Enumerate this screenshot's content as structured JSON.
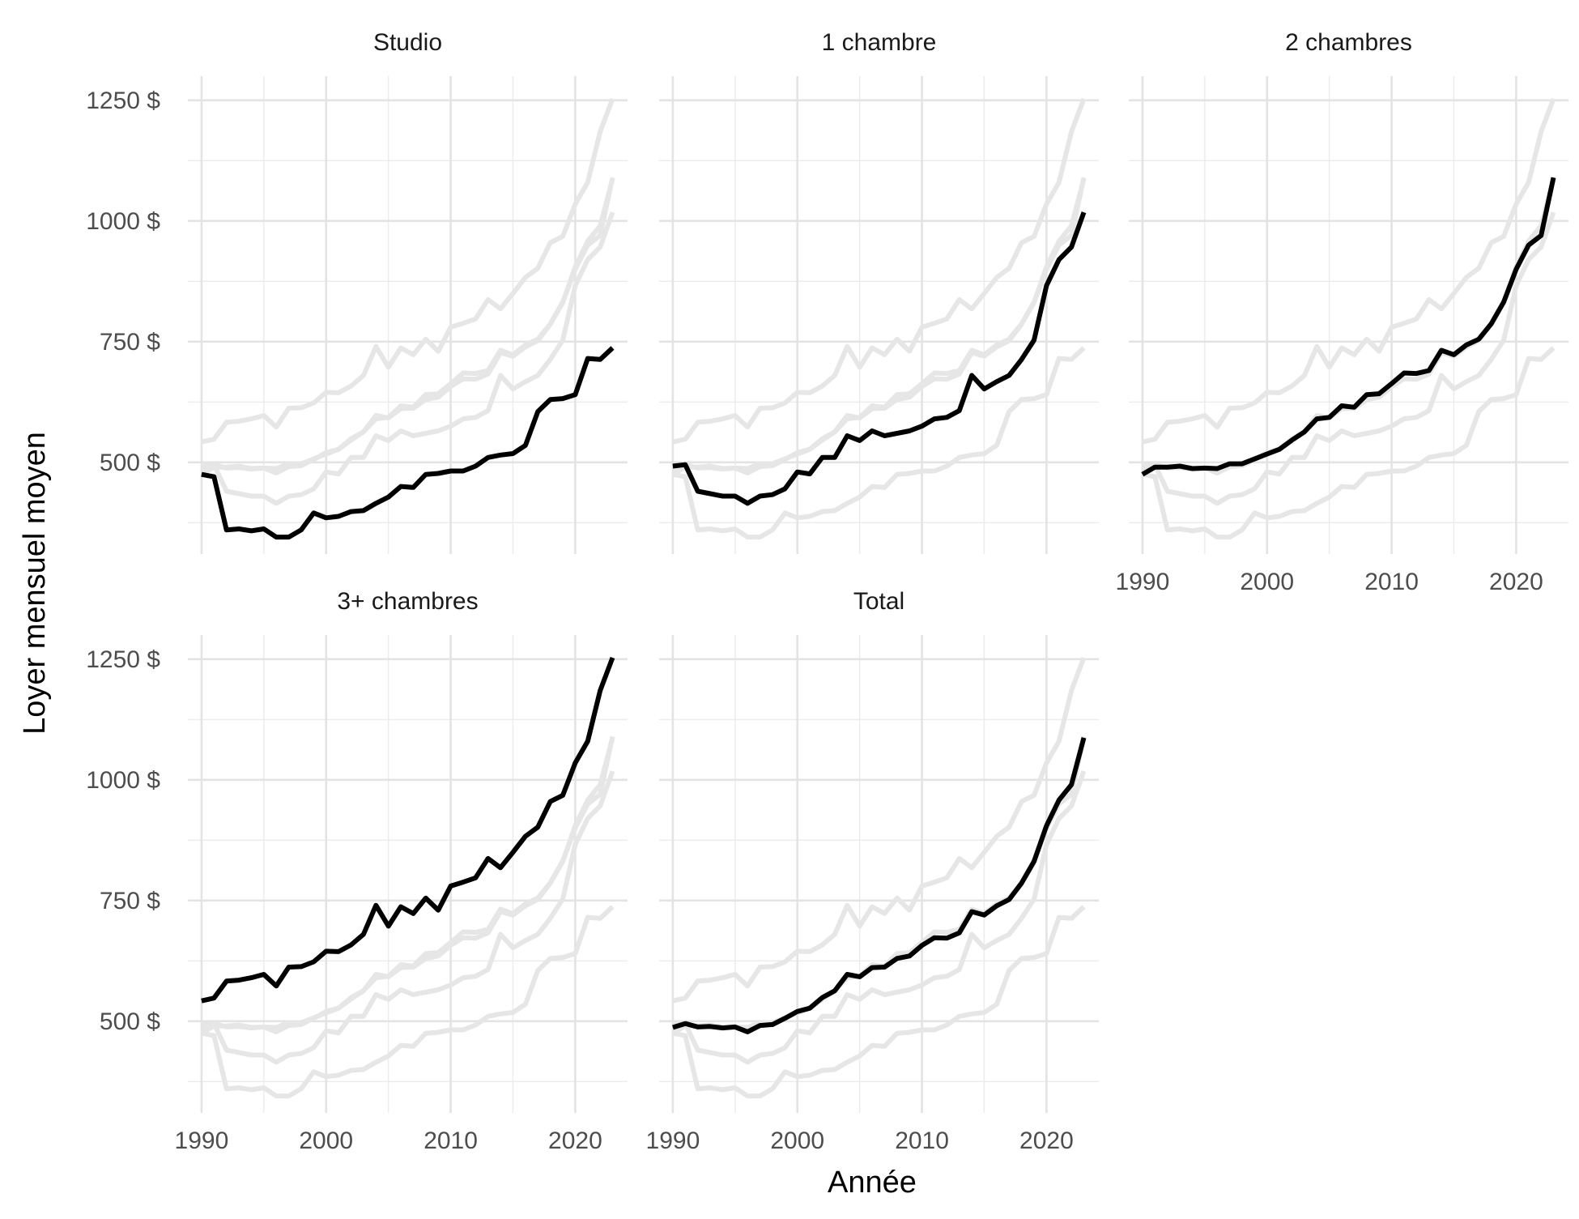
{
  "chart_data": {
    "type": "line",
    "xlabel": "Année",
    "ylabel": "Loyer mensuel moyen",
    "xlim": [
      1988.9,
      2024.2
    ],
    "ylim": [
      310,
      1300
    ],
    "x_ticks": [
      1990,
      2000,
      2010,
      2020
    ],
    "x_tick_labels": [
      "1990",
      "2000",
      "2010",
      "2020"
    ],
    "y_ticks": [
      500,
      750,
      1000,
      1250
    ],
    "y_tick_labels": [
      "500 $",
      "750 $",
      "1000 $",
      "1250 $"
    ],
    "grid": true,
    "legend": "none",
    "highlight_color": "#000000",
    "background_line_color": "#e6e6e6",
    "x": [
      1990,
      1991,
      1992,
      1993,
      1994,
      1995,
      1996,
      1997,
      1998,
      1999,
      2000,
      2001,
      2002,
      2003,
      2004,
      2005,
      2006,
      2007,
      2008,
      2009,
      2010,
      2011,
      2012,
      2013,
      2014,
      2015,
      2016,
      2017,
      2018,
      2019,
      2020,
      2021,
      2022,
      2023
    ],
    "series": [
      {
        "name": "Studio",
        "values": [
          475,
          470,
          360,
          362,
          358,
          362,
          345,
          345,
          360,
          395,
          385,
          388,
          398,
          400,
          415,
          428,
          450,
          448,
          475,
          477,
          482,
          482,
          492,
          510,
          515,
          518,
          535,
          605,
          630,
          632,
          640,
          715,
          713,
          737
        ]
      },
      {
        "name": "1 chambre",
        "values": [
          492,
          495,
          440,
          435,
          430,
          430,
          415,
          430,
          433,
          445,
          480,
          476,
          510,
          510,
          555,
          545,
          565,
          555,
          560,
          565,
          575,
          590,
          593,
          607,
          680,
          652,
          667,
          680,
          713,
          753,
          866,
          920,
          946,
          1018
        ]
      },
      {
        "name": "2 chambres",
        "values": [
          475,
          490,
          490,
          492,
          487,
          488,
          487,
          497,
          497,
          507,
          517,
          527,
          546,
          563,
          590,
          593,
          617,
          614,
          640,
          642,
          663,
          685,
          684,
          690,
          732,
          723,
          743,
          755,
          787,
          832,
          900,
          950,
          970,
          1090
        ]
      },
      {
        "name": "3+ chambres",
        "values": [
          542,
          548,
          583,
          585,
          590,
          597,
          573,
          612,
          613,
          623,
          645,
          644,
          658,
          680,
          740,
          697,
          737,
          723,
          755,
          730,
          780,
          788,
          797,
          837,
          818,
          850,
          883,
          902,
          955,
          968,
          1035,
          1080,
          1185,
          1253
        ]
      },
      {
        "name": "Total",
        "values": [
          487,
          495,
          488,
          489,
          486,
          488,
          478,
          491,
          493,
          506,
          520,
          527,
          549,
          563,
          597,
          592,
          611,
          612,
          630,
          635,
          657,
          673,
          672,
          683,
          727,
          720,
          739,
          752,
          786,
          831,
          905,
          958,
          990,
          1087
        ]
      }
    ],
    "facets": [
      {
        "title": "Studio",
        "series_index": 0,
        "show_x_ticks": false,
        "show_y_ticks": true
      },
      {
        "title": "1 chambre",
        "series_index": 1,
        "show_x_ticks": false,
        "show_y_ticks": false
      },
      {
        "title": "2 chambres",
        "series_index": 2,
        "show_x_ticks": true,
        "show_y_ticks": false
      },
      {
        "title": "3+ chambres",
        "series_index": 3,
        "show_x_ticks": true,
        "show_y_ticks": true
      },
      {
        "title": "Total",
        "series_index": 4,
        "show_x_ticks": true,
        "show_y_ticks": false
      }
    ]
  }
}
